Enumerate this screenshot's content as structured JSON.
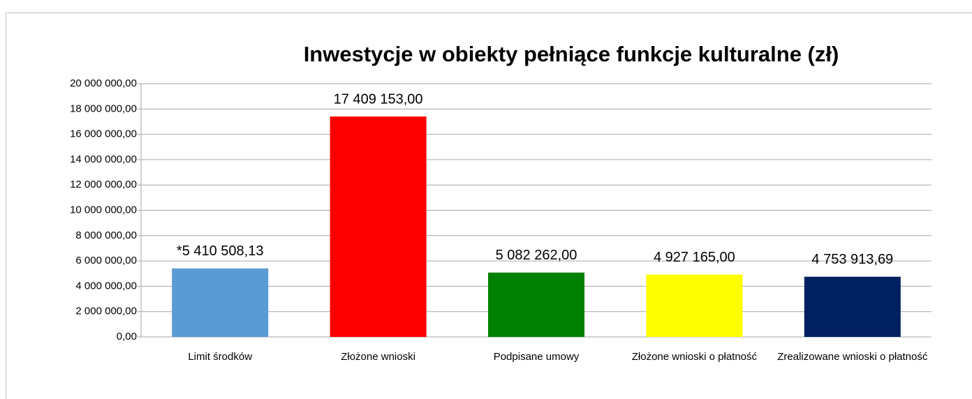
{
  "chart_data": {
    "type": "bar",
    "title": "Inwestycje w obiekty pełniące funkcje kulturalne (zł)",
    "categories": [
      "Limit środków",
      "Złożone wnioski",
      "Podpisane umowy",
      "Złożone wnioski o płatność",
      "Zrealizowane wnioski o płatność"
    ],
    "values": [
      5410508.13,
      17409153,
      5082262,
      4927165,
      4753913.69
    ],
    "value_labels": [
      "*5 410 508,13",
      "17 409 153,00",
      "5 082 262,00",
      "4 927 165,00",
      "4 753 913,69"
    ],
    "colors": [
      "#5b9bd5",
      "#ff0000",
      "#008000",
      "#ffff00",
      "#002060"
    ],
    "ylim": [
      0,
      20000000
    ],
    "yticks": [
      {
        "value": 0,
        "label": "0,00"
      },
      {
        "value": 2000000,
        "label": "2 000 000,00"
      },
      {
        "value": 4000000,
        "label": "4 000 000,00"
      },
      {
        "value": 6000000,
        "label": "6 000 000,00"
      },
      {
        "value": 8000000,
        "label": "8 000 000,00"
      },
      {
        "value": 10000000,
        "label": "10 000 000,00"
      },
      {
        "value": 12000000,
        "label": "12 000 000,00"
      },
      {
        "value": 14000000,
        "label": "14 000 000,00"
      },
      {
        "value": 16000000,
        "label": "16 000 000,00"
      },
      {
        "value": 18000000,
        "label": "18 000 000,00"
      },
      {
        "value": 20000000,
        "label": "20 000 000,00"
      }
    ],
    "grid": true
  }
}
